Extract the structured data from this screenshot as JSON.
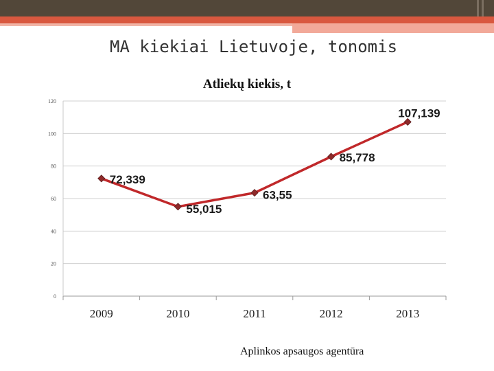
{
  "slide": {
    "title": "MA kiekiai Lietuvoje, tonomis",
    "source": "Aplinkos apsaugos agentūra"
  },
  "colors": {
    "header_dark": "#524739",
    "header_accent": "#d9583f",
    "line": "#c0282a",
    "marker": "#8e2a2a"
  },
  "chart_data": {
    "type": "line",
    "title": "Atliekų kiekis, t",
    "xlabel": "",
    "ylabel": "",
    "categories": [
      "2009",
      "2010",
      "2011",
      "2012",
      "2013"
    ],
    "series": [
      {
        "values": [
          72.339,
          55.015,
          63.55,
          85.778,
          107.139
        ],
        "labels": [
          "72,339",
          "55,015",
          "63,55",
          "85,778",
          "107,139"
        ]
      }
    ],
    "ylim": [
      0,
      120
    ],
    "yticks": [
      "0",
      "20",
      "40",
      "60",
      "80",
      "100",
      "120"
    ],
    "grid": true,
    "legend": "none"
  }
}
